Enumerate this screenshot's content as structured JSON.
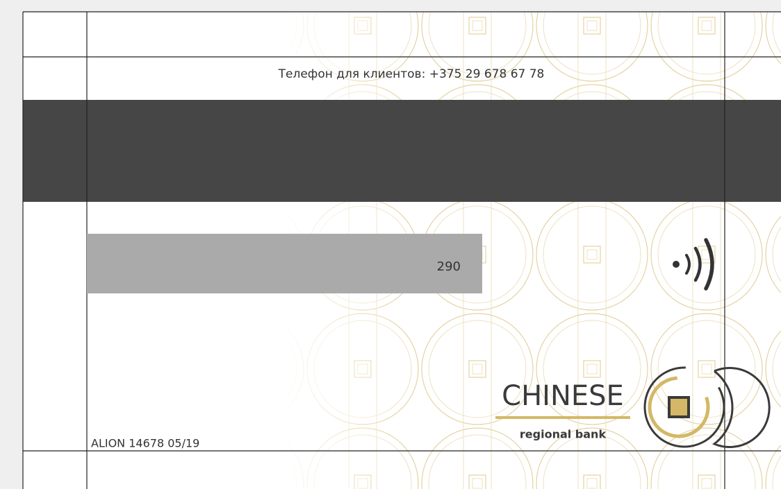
{
  "phone": "Телефон для клиентов: +375 29 678 67 78",
  "signature_code": "290",
  "serial": "ALION 14678 05/19",
  "logo": {
    "name": "CHINESE",
    "tagline": "regional bank"
  }
}
